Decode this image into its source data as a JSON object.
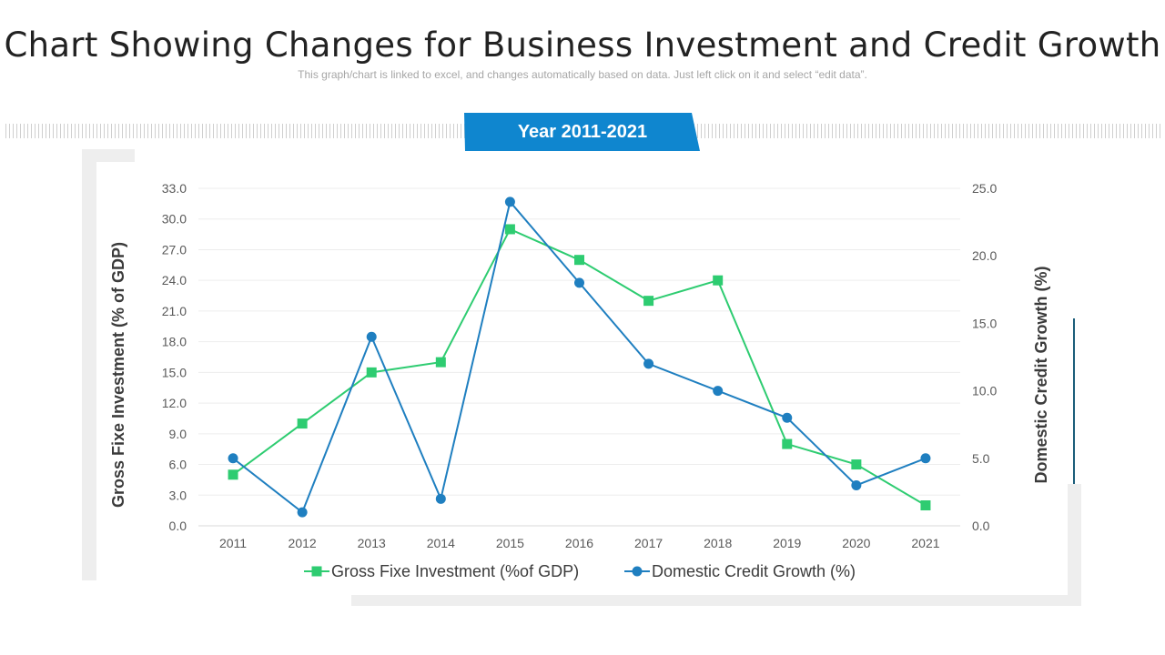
{
  "header": {
    "title": "Chart Showing Changes for Business Investment and Credit Growth",
    "subtitle": "This graph/chart is linked to excel, and changes automatically based on data. Just left click on it and select “edit data”."
  },
  "banner": {
    "label": "Year 2011-2021",
    "color": "#0f86cf"
  },
  "chart_data": {
    "type": "line",
    "title": "",
    "categories": [
      "2011",
      "2012",
      "2013",
      "2014",
      "2015",
      "2016",
      "2017",
      "2018",
      "2019",
      "2020",
      "2021"
    ],
    "series": [
      {
        "name": "Gross Fixe Investment (%of GDP)",
        "axis": "left",
        "marker": "square",
        "color": "#2ecc71",
        "values": [
          5,
          10,
          15,
          16,
          29,
          26,
          22,
          24,
          8,
          6,
          2
        ]
      },
      {
        "name": "Domestic Credit Growth (%)",
        "axis": "right",
        "marker": "circle",
        "color": "#1f7fc0",
        "values": [
          5,
          1,
          14,
          2,
          24,
          18,
          12,
          10,
          8,
          3,
          5
        ]
      }
    ],
    "y_left": {
      "label": "Gross Fixe Investment (% of GDP)",
      "range": [
        0,
        33
      ],
      "ticks": [
        "0.0",
        "3.0",
        "6.0",
        "9.0",
        "12.0",
        "15.0",
        "18.0",
        "21.0",
        "24.0",
        "27.0",
        "30.0",
        "33.0"
      ]
    },
    "y_right": {
      "label": "Domestic Credit Growth (%)",
      "range": [
        0,
        25
      ],
      "ticks": [
        "0.0",
        "5.0",
        "10.0",
        "15.0",
        "20.0",
        "25.0"
      ]
    },
    "grid": true,
    "legend_position": "bottom"
  }
}
